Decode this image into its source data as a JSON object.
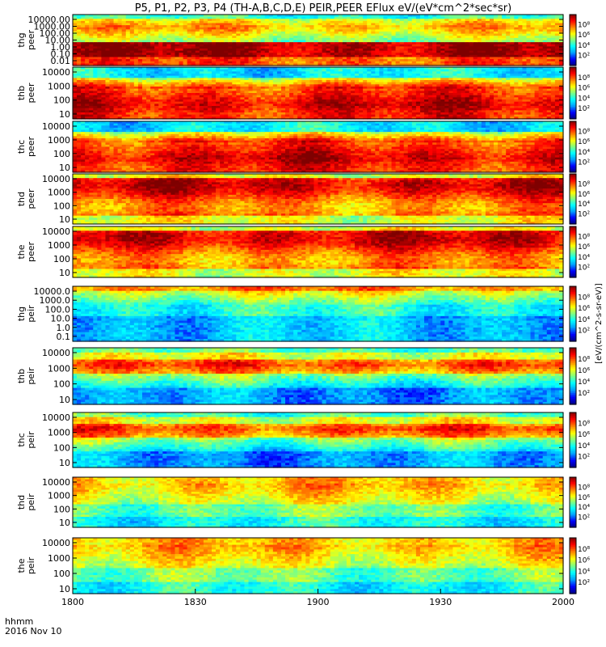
{
  "chart_data": {
    "type": "heatmap",
    "title": "P5, P1, P2, P3, P4 (TH-A,B,C,D,E) PEIR,PEER EFlux eV/(eV*cm^2*sec*sr)",
    "x_label": "hhmm",
    "date_label": "2016 Nov 10",
    "x_ticks": [
      "1800",
      "1830",
      "1900",
      "1930",
      "2000"
    ],
    "colorbar_label": "[eV/(cm^2-s-sr-eV)]",
    "colorbar_ticks": [
      "10²",
      "10⁴",
      "10⁶",
      "10⁸"
    ],
    "colormap": [
      "#00007f",
      "#0000ff",
      "#00a0ff",
      "#00ffff",
      "#80ff80",
      "#ffff00",
      "#ff8000",
      "#ff0000",
      "#7f0000"
    ],
    "panels": [
      {
        "probe": "thg",
        "species": "peer",
        "yticks": [
          "10000.00",
          "1000.00",
          "100.00",
          "10.00",
          "1.00",
          "0.10",
          "0.01"
        ],
        "profile": "peer_a"
      },
      {
        "probe": "thb",
        "species": "peer",
        "yticks": [
          "10000",
          "1000",
          "100",
          "10"
        ],
        "profile": "peer_b"
      },
      {
        "probe": "thc",
        "species": "peer",
        "yticks": [
          "10000",
          "1000",
          "100",
          "10"
        ],
        "profile": "peer_b"
      },
      {
        "probe": "thd",
        "species": "peer",
        "yticks": [
          "10000",
          "1000",
          "100",
          "10"
        ],
        "profile": "peer_d"
      },
      {
        "probe": "the",
        "species": "peer",
        "yticks": [
          "10000",
          "1000",
          "100",
          "10"
        ],
        "profile": "peer_d"
      },
      {
        "probe": "thg",
        "species": "peir",
        "yticks": [
          "10000.0",
          "1000.0",
          "100.0",
          "10.0",
          "1.0",
          "0.1"
        ],
        "profile": "peir_a"
      },
      {
        "probe": "thb",
        "species": "peir",
        "yticks": [
          "10000",
          "1000",
          "100",
          "10"
        ],
        "profile": "peir_b"
      },
      {
        "probe": "thc",
        "species": "peir",
        "yticks": [
          "10000",
          "1000",
          "100",
          "10"
        ],
        "profile": "peir_b"
      },
      {
        "probe": "thd",
        "species": "peir",
        "yticks": [
          "10000",
          "1000",
          "100",
          "10"
        ],
        "profile": "peir_d"
      },
      {
        "probe": "the",
        "species": "peir",
        "yticks": [
          "10000",
          "1000",
          "100",
          "10"
        ],
        "profile": "peir_d"
      }
    ]
  }
}
